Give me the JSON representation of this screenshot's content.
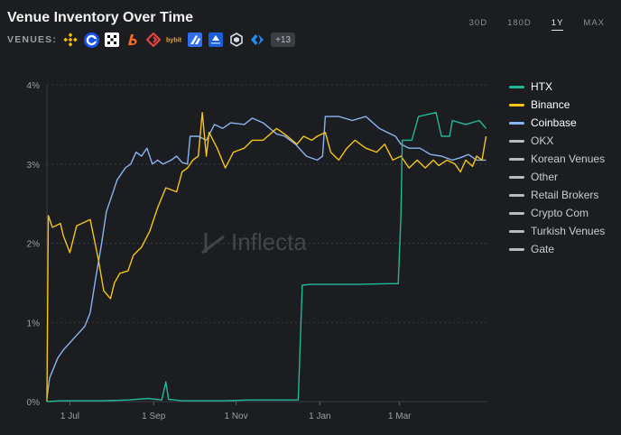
{
  "header": {
    "title": "Venue Inventory Over Time",
    "venues_label": "VENUES:",
    "more_venues": "+13",
    "venue_icons": [
      {
        "name": "binance-icon",
        "color": "#f0b90b"
      },
      {
        "name": "coinbase-icon",
        "color": "#1652f0"
      },
      {
        "name": "okx-icon",
        "color": "#ffffff"
      },
      {
        "name": "bitget-icon",
        "color": "#ff6b1a"
      },
      {
        "name": "gate-icon",
        "color": "#e2463c"
      },
      {
        "name": "bybit-icon",
        "color": "#f7a600"
      },
      {
        "name": "bitbank-icon",
        "color": "#2f6ff0"
      },
      {
        "name": "upbit-icon",
        "color": "#1b5fd6"
      },
      {
        "name": "cryptocom-icon",
        "color": "#d8dde6"
      },
      {
        "name": "kucoin-icon",
        "color": "#1f8cf0"
      }
    ]
  },
  "range_tabs": [
    {
      "label": "30D",
      "active": false
    },
    {
      "label": "180D",
      "active": false
    },
    {
      "label": "1Y",
      "active": true
    },
    {
      "label": "MAX",
      "active": false
    }
  ],
  "watermark": "Inflecta",
  "chart_data": {
    "type": "line",
    "title": "Venue Inventory Over Time",
    "xlabel": "",
    "ylabel": "",
    "x_ticks": [
      "1 Jul",
      "1 Sep",
      "1 Nov",
      "1 Jan",
      "1 Mar"
    ],
    "x_tick_days": [
      17,
      79,
      140,
      202,
      261
    ],
    "x_range_days": [
      0,
      326
    ],
    "ylim": [
      0,
      4
    ],
    "y_ticks": [
      "0%",
      "1%",
      "2%",
      "3%",
      "4%"
    ],
    "y_tick_values": [
      0,
      1,
      2,
      3,
      4
    ],
    "grid": "horizontal-dashed",
    "legend_position": "right",
    "series": [
      {
        "name": "HTX",
        "color": "#22b89a",
        "points": [
          [
            0,
            0.0
          ],
          [
            10,
            0.01
          ],
          [
            40,
            0.01
          ],
          [
            60,
            0.02
          ],
          [
            75,
            0.04
          ],
          [
            85,
            0.02
          ],
          [
            88,
            0.25
          ],
          [
            90,
            0.03
          ],
          [
            100,
            0.01
          ],
          [
            130,
            0.01
          ],
          [
            150,
            0.02
          ],
          [
            186,
            0.02
          ],
          [
            189,
            1.47
          ],
          [
            195,
            1.48
          ],
          [
            230,
            1.48
          ],
          [
            253,
            1.49
          ],
          [
            260,
            1.49
          ],
          [
            262,
            2.35
          ],
          [
            263,
            3.3
          ],
          [
            270,
            3.3
          ],
          [
            275,
            3.6
          ],
          [
            288,
            3.65
          ],
          [
            292,
            3.35
          ],
          [
            298,
            3.35
          ],
          [
            300,
            3.55
          ],
          [
            310,
            3.5
          ],
          [
            320,
            3.55
          ],
          [
            325,
            3.45
          ]
        ]
      },
      {
        "name": "Binance",
        "color": "#f5c518",
        "points": [
          [
            0,
            0.0
          ],
          [
            1,
            2.35
          ],
          [
            4,
            2.2
          ],
          [
            10,
            2.25
          ],
          [
            12,
            2.1
          ],
          [
            17,
            1.88
          ],
          [
            22,
            2.22
          ],
          [
            32,
            2.3
          ],
          [
            38,
            1.8
          ],
          [
            42,
            1.4
          ],
          [
            47,
            1.3
          ],
          [
            50,
            1.5
          ],
          [
            54,
            1.62
          ],
          [
            60,
            1.65
          ],
          [
            64,
            1.85
          ],
          [
            70,
            1.95
          ],
          [
            76,
            2.15
          ],
          [
            82,
            2.45
          ],
          [
            88,
            2.7
          ],
          [
            96,
            2.65
          ],
          [
            100,
            2.9
          ],
          [
            104,
            2.95
          ],
          [
            108,
            3.05
          ],
          [
            112,
            3.1
          ],
          [
            115,
            3.65
          ],
          [
            118,
            3.1
          ],
          [
            120,
            3.4
          ],
          [
            126,
            3.2
          ],
          [
            132,
            2.95
          ],
          [
            138,
            3.15
          ],
          [
            146,
            3.2
          ],
          [
            152,
            3.3
          ],
          [
            160,
            3.3
          ],
          [
            170,
            3.45
          ],
          [
            178,
            3.35
          ],
          [
            185,
            3.25
          ],
          [
            190,
            3.35
          ],
          [
            196,
            3.3
          ],
          [
            200,
            3.35
          ],
          [
            206,
            3.4
          ],
          [
            210,
            3.15
          ],
          [
            216,
            3.05
          ],
          [
            222,
            3.2
          ],
          [
            228,
            3.3
          ],
          [
            236,
            3.2
          ],
          [
            244,
            3.15
          ],
          [
            250,
            3.25
          ],
          [
            256,
            3.05
          ],
          [
            262,
            3.1
          ],
          [
            268,
            2.95
          ],
          [
            274,
            3.05
          ],
          [
            280,
            2.95
          ],
          [
            286,
            3.05
          ],
          [
            290,
            2.98
          ],
          [
            296,
            3.05
          ],
          [
            302,
            3.0
          ],
          [
            306,
            2.9
          ],
          [
            310,
            3.05
          ],
          [
            315,
            2.97
          ],
          [
            318,
            3.1
          ],
          [
            322,
            3.05
          ],
          [
            325,
            3.35
          ]
        ]
      },
      {
        "name": "Coinbase",
        "color": "#8ab4f0",
        "points": [
          [
            0,
            0.05
          ],
          [
            2,
            0.3
          ],
          [
            8,
            0.55
          ],
          [
            12,
            0.65
          ],
          [
            20,
            0.8
          ],
          [
            28,
            0.95
          ],
          [
            32,
            1.12
          ],
          [
            36,
            1.55
          ],
          [
            40,
            1.95
          ],
          [
            44,
            2.4
          ],
          [
            48,
            2.6
          ],
          [
            52,
            2.8
          ],
          [
            58,
            2.95
          ],
          [
            62,
            3.0
          ],
          [
            66,
            3.15
          ],
          [
            70,
            3.1
          ],
          [
            74,
            3.2
          ],
          [
            78,
            3.0
          ],
          [
            82,
            3.05
          ],
          [
            86,
            3.0
          ],
          [
            92,
            3.05
          ],
          [
            96,
            3.1
          ],
          [
            100,
            3.02
          ],
          [
            104,
            3.0
          ],
          [
            106,
            3.35
          ],
          [
            112,
            3.35
          ],
          [
            118,
            3.3
          ],
          [
            124,
            3.5
          ],
          [
            130,
            3.45
          ],
          [
            136,
            3.52
          ],
          [
            146,
            3.5
          ],
          [
            152,
            3.58
          ],
          [
            160,
            3.52
          ],
          [
            170,
            3.38
          ],
          [
            176,
            3.35
          ],
          [
            184,
            3.25
          ],
          [
            192,
            3.1
          ],
          [
            200,
            3.05
          ],
          [
            204,
            3.1
          ],
          [
            206,
            3.6
          ],
          [
            216,
            3.6
          ],
          [
            226,
            3.55
          ],
          [
            236,
            3.6
          ],
          [
            246,
            3.45
          ],
          [
            252,
            3.4
          ],
          [
            258,
            3.35
          ],
          [
            262,
            3.25
          ],
          [
            268,
            3.2
          ],
          [
            276,
            3.2
          ],
          [
            284,
            3.12
          ],
          [
            292,
            3.1
          ],
          [
            300,
            3.05
          ],
          [
            306,
            3.08
          ],
          [
            312,
            3.12
          ],
          [
            318,
            3.05
          ],
          [
            325,
            3.05
          ]
        ]
      },
      {
        "name": "OKX",
        "color": "#b8bcc0",
        "points": []
      },
      {
        "name": "Korean Venues",
        "color": "#b8bcc0",
        "points": []
      },
      {
        "name": "Other",
        "color": "#b8bcc0",
        "points": []
      },
      {
        "name": "Retail Brokers",
        "color": "#b8bcc0",
        "points": []
      },
      {
        "name": "Crypto Com",
        "color": "#b8bcc0",
        "points": []
      },
      {
        "name": "Turkish Venues",
        "color": "#b8bcc0",
        "points": []
      },
      {
        "name": "Gate",
        "color": "#b8bcc0",
        "points": []
      }
    ]
  }
}
